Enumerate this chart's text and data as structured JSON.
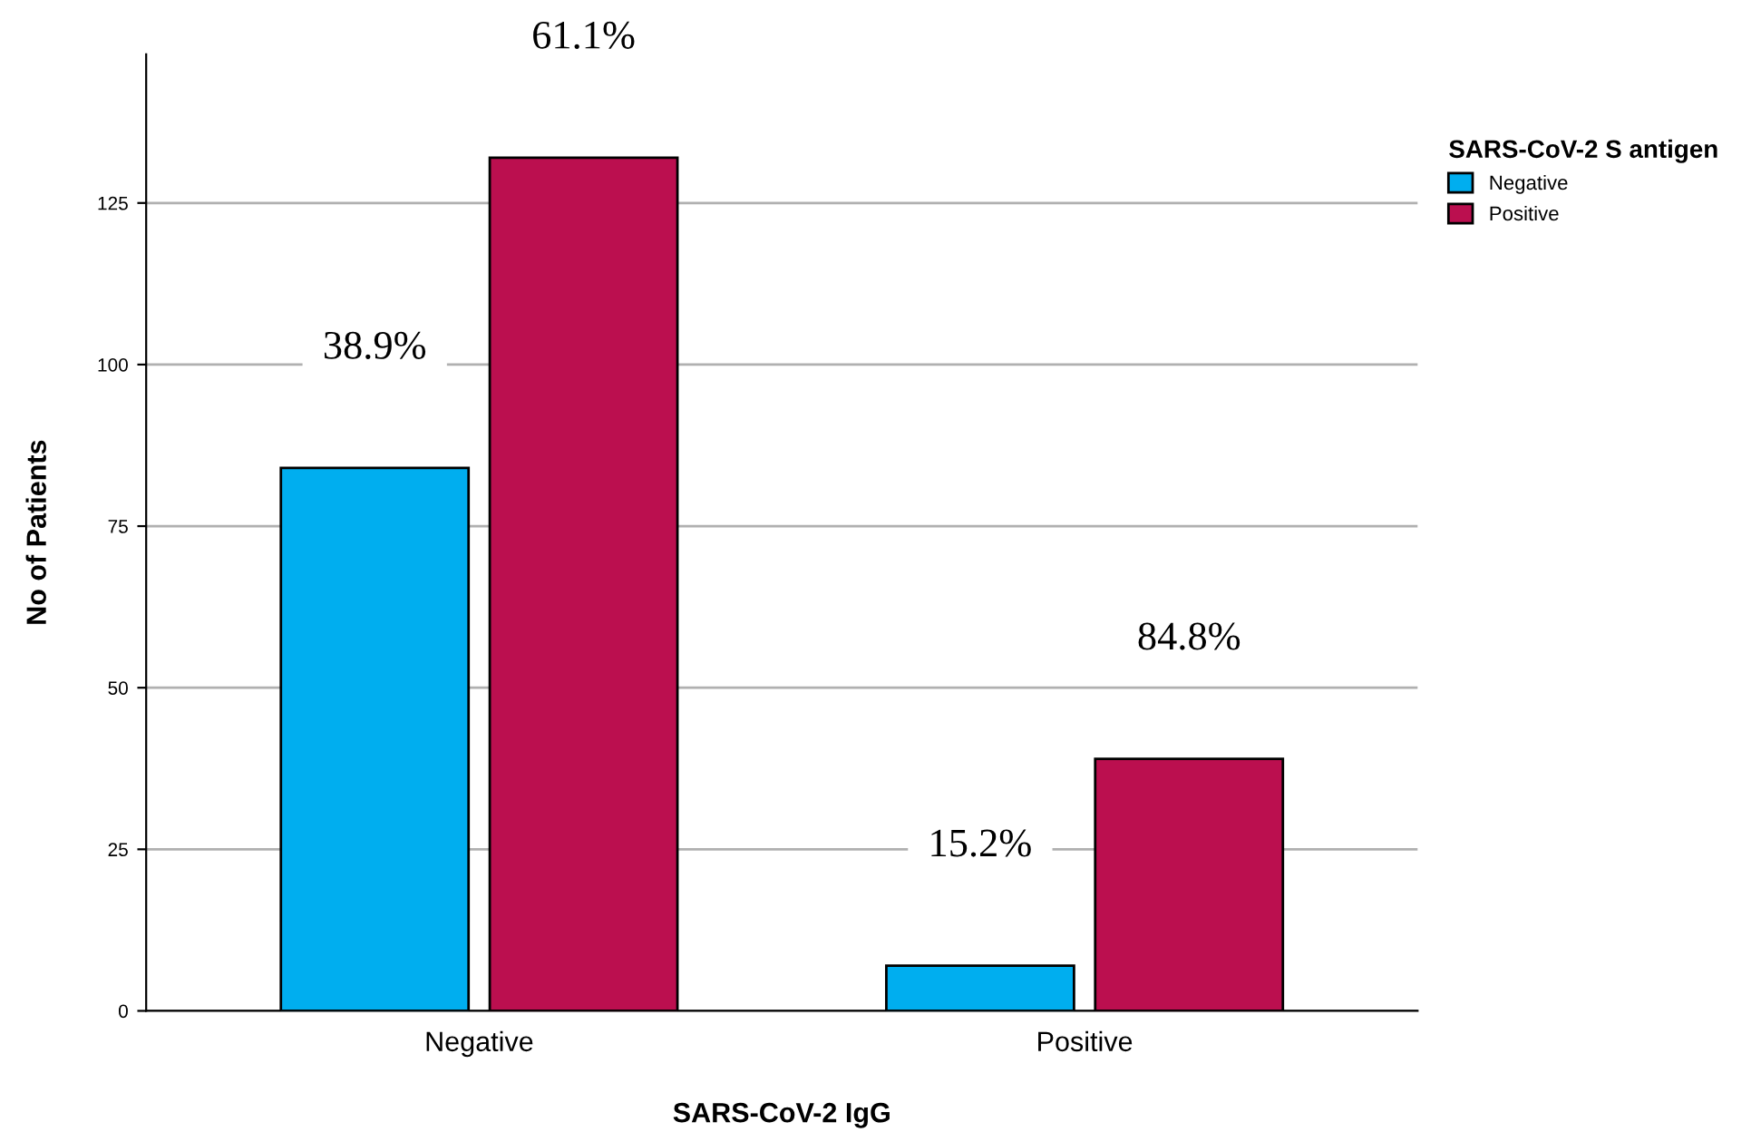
{
  "chart_data": {
    "type": "bar",
    "xlabel": "SARS-CoV-2 IgG",
    "ylabel": "No of Patients",
    "legend_title": "SARS-CoV-2 S antigen",
    "categories": [
      "Negative",
      "Positive"
    ],
    "series": [
      {
        "name": "Negative",
        "color": "#00aeef",
        "values": [
          84,
          7
        ]
      },
      {
        "name": "Positive",
        "color": "#bb0f4f",
        "values": [
          132,
          39
        ]
      }
    ],
    "annotations": [
      "38.9%",
      "61.1%",
      "15.2%",
      "84.8%"
    ],
    "ylim": [
      0,
      148
    ],
    "yticks": [
      0,
      25,
      50,
      75,
      100,
      125
    ],
    "grid": "y",
    "legend": "top right"
  }
}
